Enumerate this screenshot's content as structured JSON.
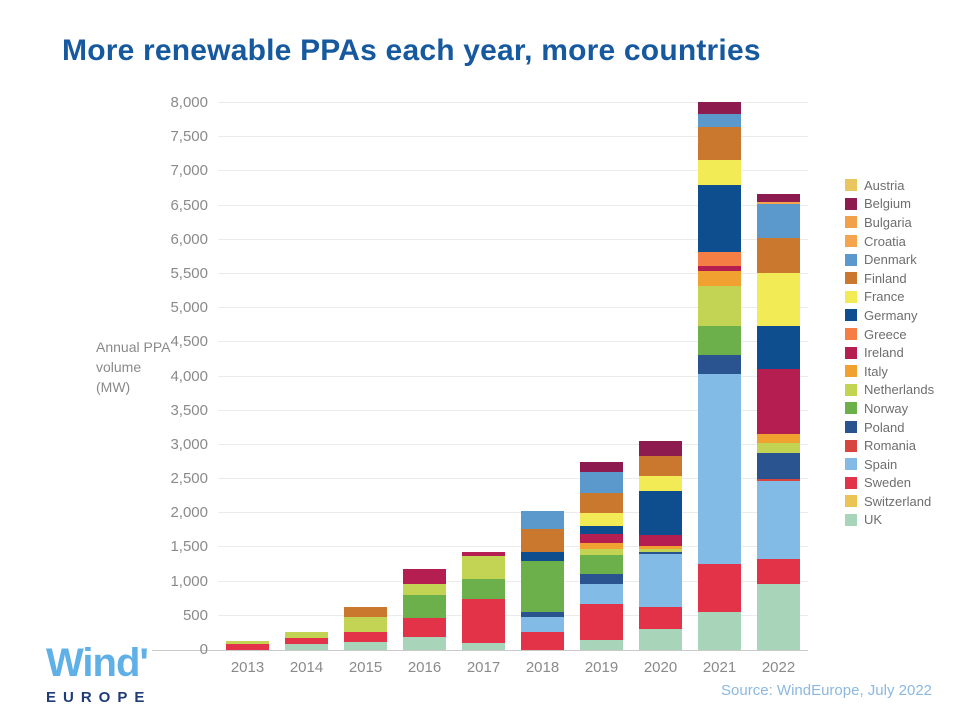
{
  "title": {
    "text": "More renewable PPAs each year, more countries",
    "color": "#17599F"
  },
  "source": {
    "text": "Source: WindEurope, July 2022",
    "color": "#8CB8DE"
  },
  "logo": {
    "word": "Wind",
    "mark": "'",
    "subword": "EUROPE",
    "word_color": "#5FB0E6",
    "subword_color": "#1E3C78"
  },
  "chart_data": {
    "type": "bar",
    "stacked": true,
    "title": "More renewable PPAs each year, more countries",
    "ylabel_lines": [
      "Annual PPA",
      "volume",
      "(MW)"
    ],
    "xlabel": "",
    "categories": [
      "2013",
      "2014",
      "2015",
      "2016",
      "2017",
      "2018",
      "2019",
      "2020",
      "2021",
      "2022"
    ],
    "ylim": [
      0,
      8000
    ],
    "ytick_step": 500,
    "yticks": [
      "0",
      "500",
      "1,000",
      "1,500",
      "2,000",
      "2,500",
      "3,000",
      "3,500",
      "4,000",
      "4,500",
      "5,000",
      "5,500",
      "6,000",
      "6,500",
      "7,000",
      "7,500",
      "8,000"
    ],
    "grid": true,
    "legend_position": "right",
    "axis_text_color": "#8a8a8a",
    "grid_color": "#ebebeb",
    "stacking_note": "stacked bottom-to-top in reverse legend order (UK at bottom, Austria at top)",
    "series": [
      {
        "name": "Austria",
        "color": "#EAC65E",
        "values": [
          0,
          0,
          0,
          0,
          0,
          0,
          0,
          0,
          0,
          0
        ]
      },
      {
        "name": "Belgium",
        "color": "#8E1B4F",
        "values": [
          0,
          0,
          0,
          0,
          0,
          0,
          135,
          220,
          175,
          120
        ]
      },
      {
        "name": "Bulgaria",
        "color": "#F2A049",
        "values": [
          0,
          0,
          0,
          0,
          0,
          0,
          0,
          0,
          0,
          0
        ]
      },
      {
        "name": "Croatia",
        "color": "#F5A54E",
        "values": [
          0,
          0,
          0,
          0,
          0,
          0,
          0,
          0,
          0,
          30
        ]
      },
      {
        "name": "Denmark",
        "color": "#5B98CC",
        "values": [
          0,
          0,
          0,
          0,
          0,
          265,
          310,
          0,
          190,
          490
        ]
      },
      {
        "name": "Finland",
        "color": "#C9782E",
        "values": [
          0,
          0,
          135,
          0,
          0,
          340,
          295,
          295,
          475,
          520
        ]
      },
      {
        "name": "France",
        "color": "#F2EB55",
        "values": [
          0,
          0,
          0,
          0,
          0,
          0,
          190,
          220,
          370,
          770
        ]
      },
      {
        "name": "Germany",
        "color": "#0E4E8E",
        "values": [
          0,
          0,
          0,
          0,
          0,
          135,
          120,
          635,
          975,
          635
        ]
      },
      {
        "name": "Greece",
        "color": "#F57E45",
        "values": [
          0,
          0,
          0,
          0,
          0,
          0,
          0,
          0,
          205,
          0
        ]
      },
      {
        "name": "Ireland",
        "color": "#B41E50",
        "values": [
          0,
          0,
          0,
          220,
          60,
          0,
          135,
          160,
          75,
          950
        ]
      },
      {
        "name": "Italy",
        "color": "#F0A12F",
        "values": [
          0,
          0,
          0,
          0,
          0,
          0,
          75,
          45,
          220,
          120
        ]
      },
      {
        "name": "Netherlands",
        "color": "#C3D455",
        "values": [
          45,
          90,
          220,
          150,
          340,
          0,
          90,
          45,
          590,
          150
        ]
      },
      {
        "name": "Norway",
        "color": "#6CB04B",
        "values": [
          0,
          0,
          0,
          340,
          295,
          740,
          280,
          0,
          415,
          0
        ]
      },
      {
        "name": "Poland",
        "color": "#2A5490",
        "values": [
          0,
          0,
          0,
          0,
          0,
          75,
          150,
          30,
          280,
          385
        ]
      },
      {
        "name": "Romania",
        "color": "#D8453F",
        "values": [
          0,
          0,
          0,
          0,
          0,
          0,
          0,
          0,
          0,
          30
        ]
      },
      {
        "name": "Spain",
        "color": "#82BCE6",
        "values": [
          0,
          0,
          0,
          0,
          0,
          220,
          295,
          770,
          2780,
          1140
        ]
      },
      {
        "name": "Sweden",
        "color": "#E23348",
        "values": [
          90,
          90,
          150,
          280,
          635,
          265,
          520,
          325,
          710,
          370
        ]
      },
      {
        "name": "Switzerland",
        "color": "#EAC556",
        "values": [
          0,
          0,
          0,
          0,
          0,
          0,
          0,
          0,
          0,
          0
        ]
      },
      {
        "name": "UK",
        "color": "#A8D4BA",
        "values": [
          0,
          90,
          120,
          190,
          105,
          0,
          150,
          310,
          550,
          960
        ]
      }
    ],
    "totals": [
      135,
      270,
      625,
      1180,
      1435,
      2040,
      2745,
      3055,
      8010,
      6670
    ]
  }
}
